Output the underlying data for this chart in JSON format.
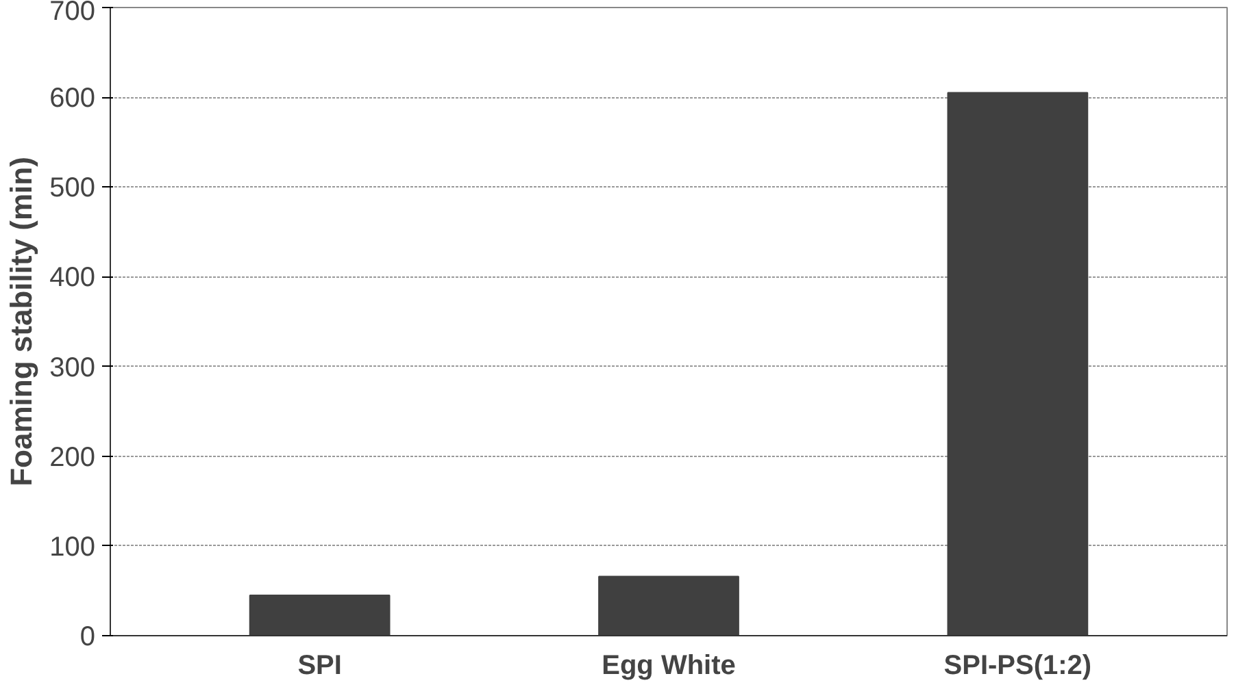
{
  "chart_data": {
    "type": "bar",
    "ylabel": "Foaming stability (min)",
    "categories": [
      "SPI",
      "Egg White",
      "SPI-PS(1:2)"
    ],
    "values": [
      45,
      66,
      605
    ],
    "color": "#404040",
    "ylim": [
      0,
      700
    ],
    "yticks": [
      0,
      100,
      200,
      300,
      400,
      500,
      600,
      700
    ],
    "grid": "y"
  }
}
